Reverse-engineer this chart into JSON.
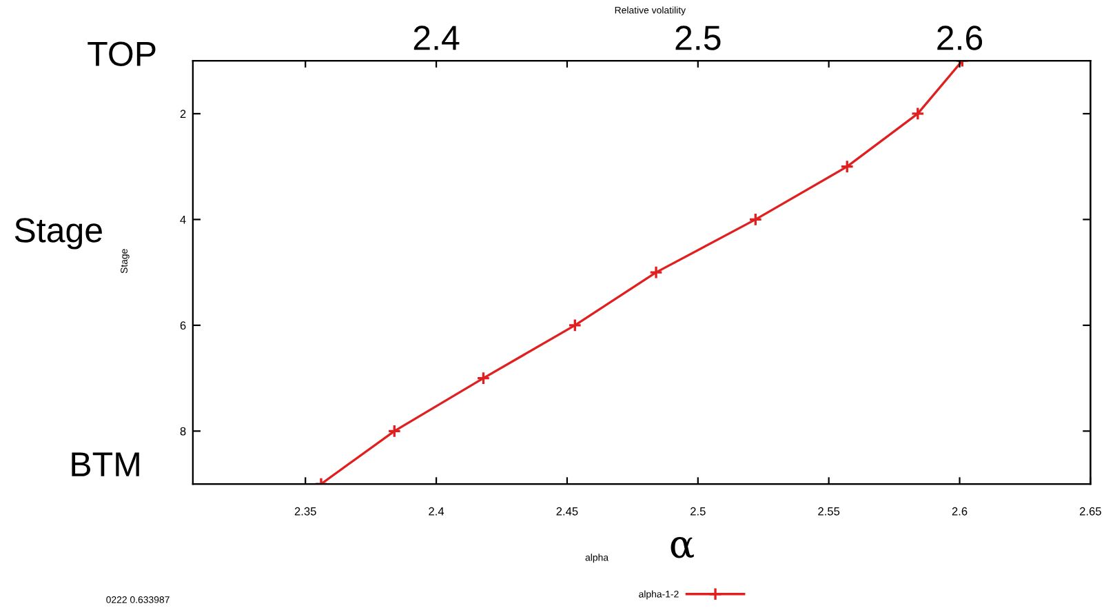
{
  "chart_data": {
    "type": "line",
    "title": "Relative volatility",
    "xlabel": "alpha",
    "series": [
      {
        "name": "alpha-1-2",
        "color": "#e02020",
        "x": [
          2.601,
          2.584,
          2.557,
          2.522,
          2.484,
          2.453,
          2.418,
          2.384,
          2.356
        ],
        "values": [
          1,
          2,
          3,
          4,
          5,
          6,
          7,
          8,
          9
        ]
      }
    ],
    "xlim": [
      2.307,
      2.65
    ],
    "xticks": [
      2.35,
      2.4,
      2.45,
      2.5,
      2.55,
      2.6,
      2.65
    ],
    "x2lim": [
      2.307,
      2.65
    ],
    "x2ticks": [
      {
        "value": 2.35,
        "label": null
      },
      2.4,
      {
        "value": 2.45,
        "label": null
      },
      2.5,
      {
        "value": 2.55,
        "label": null
      },
      2.6
    ],
    "ylim": [
      9,
      1
    ],
    "yticks": [
      2,
      4,
      6,
      8
    ],
    "annotations": [
      "Stage",
      "α",
      "0222 0.633987",
      "Stage",
      "TOP",
      "BTM"
    ],
    "marker": "cross",
    "line_style": "solid",
    "grid": false,
    "legend": "bottom"
  }
}
